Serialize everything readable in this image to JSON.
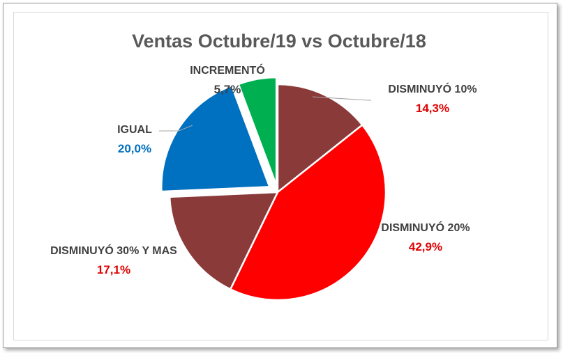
{
  "chart_data": {
    "type": "pie",
    "title": "Ventas Octubre/19 vs Octubre/18",
    "slices": [
      {
        "label": "DISMINUYÓ 10%",
        "value": 14.3,
        "display": "14,3%",
        "color": "#8b3a3a",
        "value_color": "#e00000"
      },
      {
        "label": "DISMINUYÓ 20%",
        "value": 42.9,
        "display": "42,9%",
        "color": "#ff0000",
        "value_color": "#e00000"
      },
      {
        "label": "DISMINUYÓ 30% Y MAS",
        "value": 17.1,
        "display": "17,1%",
        "color": "#8b3a3a",
        "value_color": "#e00000"
      },
      {
        "label": "IGUAL",
        "value": 20.0,
        "display": "20,0%",
        "color": "#0070c0",
        "value_color": "#0070c0"
      },
      {
        "label": "INCREMENTÓ",
        "value": 5.7,
        "display": "5,7%",
        "color": "#00b050",
        "value_color": "#404040"
      }
    ],
    "legend": "none"
  }
}
